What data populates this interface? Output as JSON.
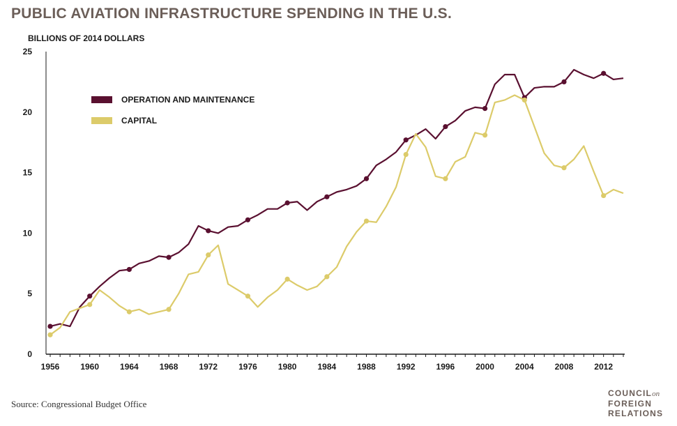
{
  "chart_data": {
    "type": "line",
    "title": "PUBLIC AVIATION INFRASTRUCTURE SPENDING IN THE U.S.",
    "ylabel": "BILLIONS OF 2014 DOLLARS",
    "xlabel": "",
    "ylim": [
      0,
      25
    ],
    "xlim": [
      1956,
      2014
    ],
    "yticks": [
      0,
      5,
      10,
      15,
      20,
      25
    ],
    "xticks": [
      1956,
      1960,
      1964,
      1968,
      1972,
      1976,
      1980,
      1984,
      1988,
      1992,
      1996,
      2000,
      2004,
      2008,
      2012
    ],
    "grid": false,
    "legend_position": "top-left",
    "x": [
      1956,
      1957,
      1958,
      1959,
      1960,
      1961,
      1962,
      1963,
      1964,
      1965,
      1966,
      1967,
      1968,
      1969,
      1970,
      1971,
      1972,
      1973,
      1974,
      1975,
      1976,
      1977,
      1978,
      1979,
      1980,
      1981,
      1982,
      1983,
      1984,
      1985,
      1986,
      1987,
      1988,
      1989,
      1990,
      1991,
      1992,
      1993,
      1994,
      1995,
      1996,
      1997,
      1998,
      1999,
      2000,
      2001,
      2002,
      2003,
      2004,
      2005,
      2006,
      2007,
      2008,
      2009,
      2010,
      2011,
      2012,
      2013,
      2014
    ],
    "series": [
      {
        "name": "OPERATION AND MAINTENANCE",
        "color": "#5a1030",
        "values": [
          2.3,
          2.5,
          2.3,
          3.9,
          4.8,
          5.6,
          6.3,
          6.9,
          7.0,
          7.5,
          7.7,
          8.1,
          8.0,
          8.4,
          9.1,
          10.6,
          10.2,
          10.0,
          10.5,
          10.6,
          11.1,
          11.5,
          12.0,
          12.0,
          12.5,
          12.6,
          11.9,
          12.6,
          13.0,
          13.4,
          13.6,
          13.9,
          14.5,
          15.6,
          16.1,
          16.7,
          17.7,
          18.1,
          18.6,
          17.8,
          18.8,
          19.3,
          20.1,
          20.4,
          20.3,
          22.3,
          23.1,
          23.1,
          21.2,
          22.0,
          22.1,
          22.1,
          22.5,
          23.5,
          23.1,
          22.8,
          23.2,
          22.7,
          22.8
        ],
        "markers_at": [
          1956,
          1960,
          1964,
          1968,
          1972,
          1976,
          1980,
          1984,
          1988,
          1992,
          1996,
          2000,
          2004,
          2008,
          2012
        ]
      },
      {
        "name": "CAPITAL",
        "color": "#dccb6a",
        "values": [
          1.6,
          2.2,
          3.5,
          3.8,
          4.1,
          5.3,
          4.7,
          4.0,
          3.5,
          3.7,
          3.3,
          3.5,
          3.7,
          5.0,
          6.6,
          6.8,
          8.2,
          9.0,
          5.8,
          5.3,
          4.8,
          3.9,
          4.7,
          5.3,
          6.2,
          5.7,
          5.3,
          5.6,
          6.4,
          7.2,
          8.9,
          10.1,
          11.0,
          10.9,
          12.2,
          13.8,
          16.5,
          18.2,
          17.1,
          14.7,
          14.5,
          15.9,
          16.3,
          18.3,
          18.1,
          20.8,
          21.0,
          21.4,
          21.0,
          18.8,
          16.6,
          15.6,
          15.4,
          16.1,
          17.2,
          15.1,
          13.1,
          13.6,
          13.3
        ],
        "markers_at": [
          1956,
          1960,
          1964,
          1968,
          1972,
          1976,
          1980,
          1984,
          1988,
          1992,
          1996,
          2000,
          2004,
          2008,
          2012
        ]
      }
    ]
  },
  "source": "Source: Congressional Budget Office",
  "logo": {
    "line1": "COUNCIL",
    "on": "on",
    "line2": "FOREIGN",
    "line3": "RELATIONS"
  },
  "colors": {
    "title": "#6b5e58",
    "axis": "#1a1a1a"
  }
}
